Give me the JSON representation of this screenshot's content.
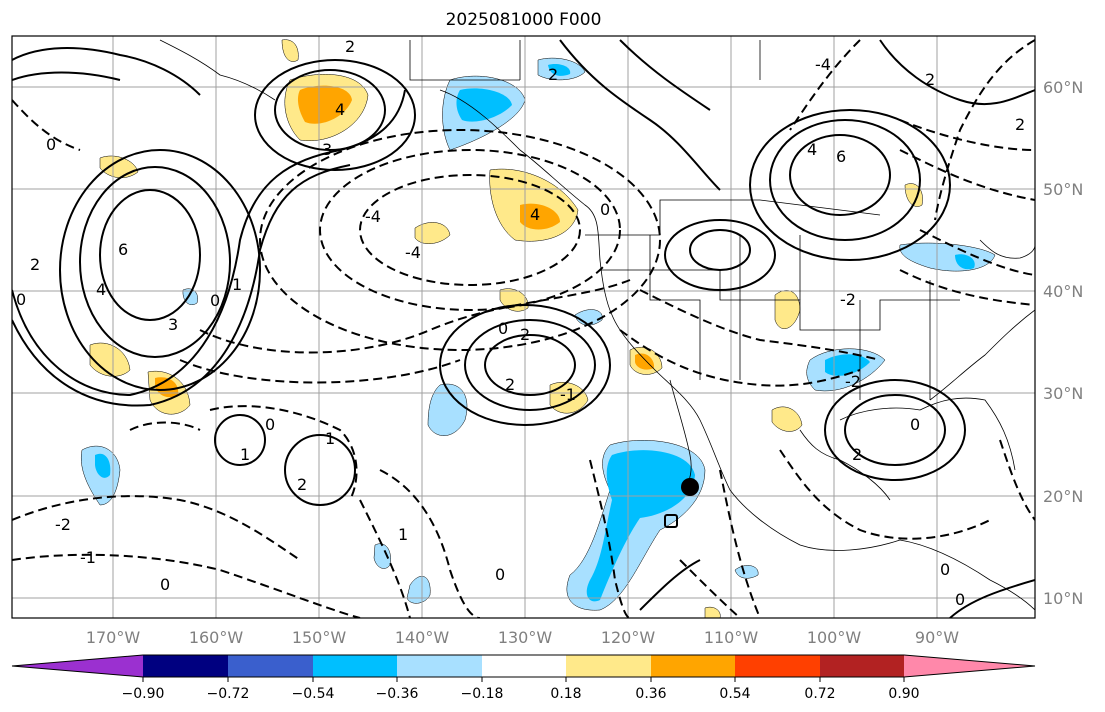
{
  "title": "2025081000 F000",
  "lon_labels": [
    "170°W",
    "160°W",
    "150°W",
    "140°W",
    "130°W",
    "120°W",
    "110°W",
    "100°W",
    "90°W"
  ],
  "lat_labels": [
    "60°N",
    "50°N",
    "40°N",
    "30°N",
    "20°N",
    "10°N"
  ],
  "colorbar": {
    "ticks": [
      "−0.90",
      "−0.72",
      "−0.54",
      "−0.36",
      "−0.18",
      "0.18",
      "0.36",
      "0.54",
      "0.72",
      "0.90"
    ],
    "colors": [
      "#9b30d0",
      "#000080",
      "#3a5fcd",
      "#00bfff",
      "#a8e0ff",
      "#ffffff",
      "#ffe98a",
      "#ffa500",
      "#ff4000",
      "#b22222",
      "#ff88aa"
    ]
  },
  "contour_labels": [
    "0",
    "2",
    "4",
    "3",
    "2",
    "6",
    "4",
    "3",
    "0",
    "1",
    "0",
    "2",
    "4",
    "-4",
    "-4",
    "2",
    "0",
    "-4",
    "6",
    "4",
    "2",
    "0",
    "2",
    "1",
    "0",
    "2",
    "1",
    "-2",
    "0",
    "-1",
    "0",
    "1",
    "2",
    "-2",
    "0",
    "-1",
    "0",
    "0",
    "2",
    "-2"
  ],
  "marker": {
    "lat": 21,
    "lon": -113
  }
}
